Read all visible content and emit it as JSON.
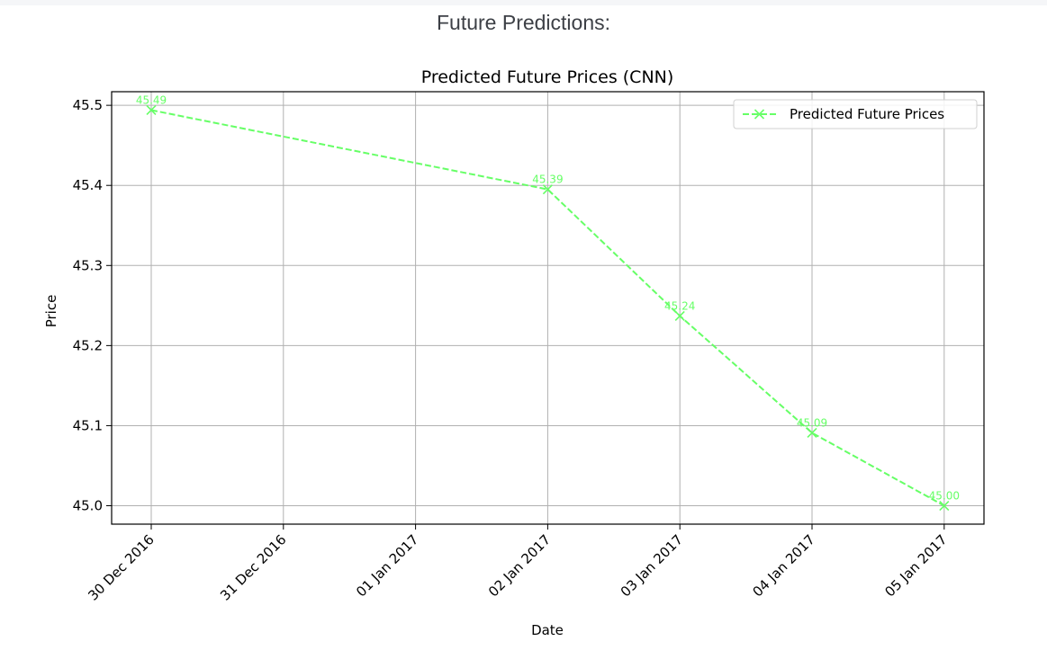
{
  "heading": "Future Predictions:",
  "chart_data": {
    "type": "line",
    "title": "Predicted Future Prices (CNN)",
    "xlabel": "Date",
    "ylabel": "Price",
    "x": [
      "30 Dec 2016",
      "31 Dec 2016",
      "01 Jan 2017",
      "02 Jan 2017",
      "03 Jan 2017",
      "04 Jan 2017",
      "05 Jan 2017"
    ],
    "ylim": [
      44.977,
      45.517
    ],
    "yticks": [
      "45.0",
      "45.1",
      "45.2",
      "45.3",
      "45.4",
      "45.5"
    ],
    "grid": true,
    "legend": "top-right",
    "series": [
      {
        "name": "Predicted Future Prices",
        "color": "#66ff66",
        "line_style": "dashed",
        "marker": "x",
        "points": [
          {
            "date": "30 Dec 2016",
            "value": 45.494,
            "label": "45.49"
          },
          {
            "date": "02 Jan 2017",
            "value": 45.395,
            "label": "45.39"
          },
          {
            "date": "03 Jan 2017",
            "value": 45.237,
            "label": "45.24"
          },
          {
            "date": "04 Jan 2017",
            "value": 45.091,
            "label": "45.09"
          },
          {
            "date": "05 Jan 2017",
            "value": 45.0,
            "label": "45.00"
          }
        ]
      }
    ]
  }
}
